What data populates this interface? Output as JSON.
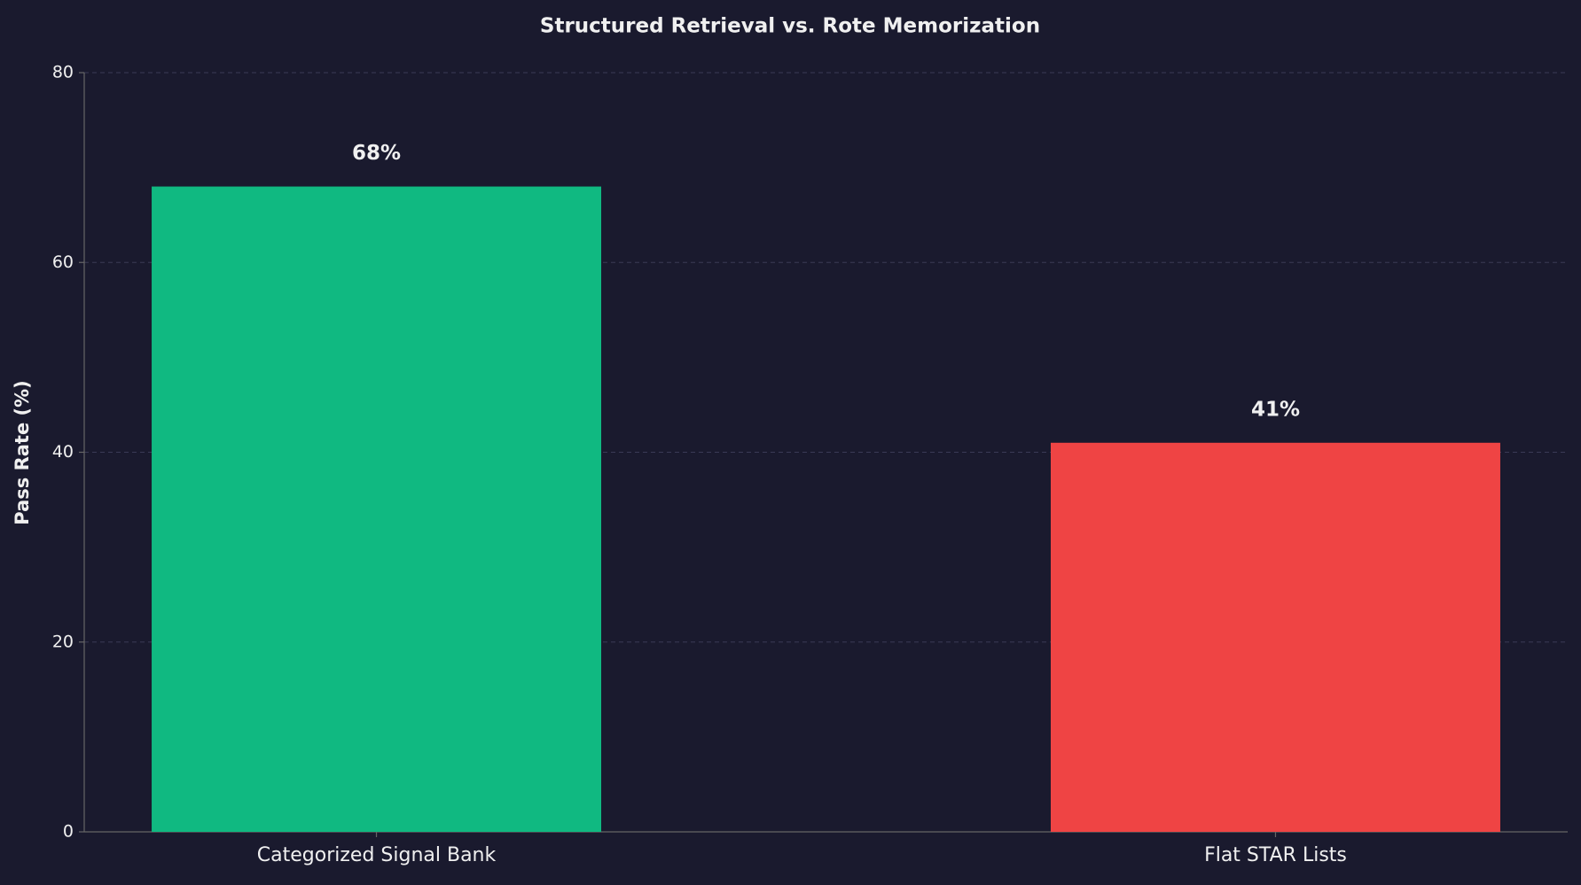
{
  "chart_data": {
    "type": "bar",
    "title": "Structured Retrieval vs. Rote Memorization",
    "y_label": "Pass Rate (%)",
    "categories": [
      "Categorized Signal Bank",
      "Flat STAR Lists"
    ],
    "values": [
      68,
      41
    ],
    "value_labels": [
      "68%",
      "41%"
    ],
    "colors": [
      "#10b981",
      "#ef4444"
    ],
    "ylim": [
      0,
      80
    ],
    "yticks": [
      0,
      20,
      40,
      60,
      80
    ],
    "grid": true
  }
}
